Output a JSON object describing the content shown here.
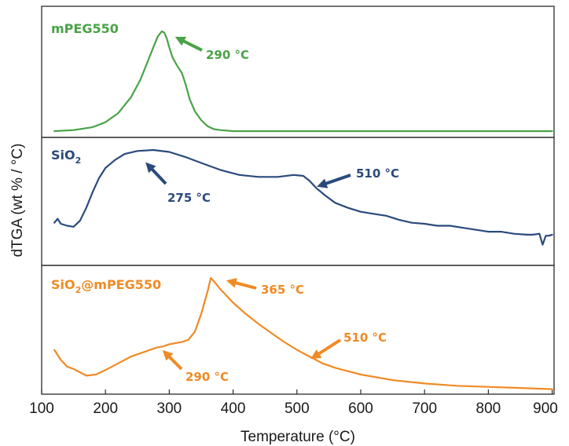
{
  "chart_data": {
    "type": "line",
    "xlabel": "Temperature (°C)",
    "ylabel": "dTGA (wt % / °C)",
    "xlim": [
      100,
      900
    ],
    "x_ticks": [
      "100",
      "200",
      "300",
      "400",
      "500",
      "600",
      "700",
      "800",
      "900"
    ],
    "series": [
      {
        "name": "mPEG550",
        "name_main": "mPEG550",
        "name_sub": "",
        "name_tail": "",
        "color": "#4aa247",
        "x": [
          120,
          150,
          180,
          200,
          220,
          240,
          255,
          265,
          275,
          282,
          288,
          292,
          296,
          300,
          305,
          312,
          320,
          326,
          332,
          340,
          350,
          360,
          370,
          380,
          400,
          500,
          600,
          700,
          800,
          900
        ],
        "y": [
          0.0,
          0.01,
          0.04,
          0.09,
          0.18,
          0.34,
          0.52,
          0.68,
          0.84,
          0.95,
          1.0,
          0.99,
          0.93,
          0.84,
          0.74,
          0.66,
          0.58,
          0.46,
          0.32,
          0.2,
          0.11,
          0.05,
          0.02,
          0.01,
          0.0,
          0.0,
          0.0,
          0.0,
          0.0,
          0.0
        ],
        "annotations": [
          {
            "label": "290 °C",
            "x": 290,
            "y": 1.0
          }
        ]
      },
      {
        "name": "SiO2",
        "name_main": "SiO",
        "name_sub": "2",
        "name_tail": "",
        "color": "#2a4a7b",
        "x": [
          120,
          125,
          130,
          140,
          150,
          160,
          170,
          180,
          190,
          200,
          215,
          230,
          250,
          275,
          300,
          325,
          350,
          380,
          410,
          440,
          470,
          495,
          510,
          520,
          530,
          545,
          560,
          580,
          600,
          620,
          640,
          660,
          680,
          700,
          720,
          740,
          760,
          780,
          800,
          820,
          840,
          860,
          870,
          880,
          885,
          890,
          895,
          900
        ],
        "y": [
          0.27,
          0.31,
          0.26,
          0.24,
          0.23,
          0.29,
          0.42,
          0.58,
          0.72,
          0.82,
          0.9,
          0.96,
          0.99,
          1.0,
          0.98,
          0.93,
          0.87,
          0.8,
          0.75,
          0.73,
          0.73,
          0.75,
          0.74,
          0.69,
          0.62,
          0.54,
          0.47,
          0.42,
          0.38,
          0.36,
          0.34,
          0.3,
          0.27,
          0.26,
          0.24,
          0.24,
          0.22,
          0.2,
          0.18,
          0.18,
          0.16,
          0.15,
          0.15,
          0.16,
          0.05,
          0.14,
          0.14,
          0.15
        ],
        "annotations": [
          {
            "label": "275 °C",
            "x": 275,
            "y": 1.0
          },
          {
            "label": "510 °C",
            "x": 510,
            "y": 0.74
          }
        ]
      },
      {
        "name": "SiO2@mPEG550",
        "name_main": "SiO",
        "name_sub": "2",
        "name_tail": "@mPEG550",
        "color": "#f08a24",
        "x": [
          120,
          130,
          140,
          150,
          160,
          170,
          185,
          200,
          220,
          240,
          260,
          280,
          290,
          300,
          310,
          320,
          330,
          340,
          350,
          360,
          365,
          370,
          380,
          400,
          420,
          440,
          460,
          480,
          500,
          520,
          540,
          560,
          580,
          600,
          650,
          700,
          750,
          800,
          850,
          900
        ],
        "y": [
          0.36,
          0.27,
          0.21,
          0.19,
          0.16,
          0.13,
          0.14,
          0.18,
          0.24,
          0.3,
          0.34,
          0.38,
          0.39,
          0.41,
          0.42,
          0.43,
          0.45,
          0.52,
          0.68,
          0.88,
          1.0,
          0.97,
          0.9,
          0.78,
          0.68,
          0.59,
          0.51,
          0.43,
          0.36,
          0.3,
          0.24,
          0.2,
          0.17,
          0.14,
          0.09,
          0.06,
          0.04,
          0.03,
          0.02,
          0.01
        ],
        "annotations": [
          {
            "label": "365 °C",
            "x": 365,
            "y": 1.0
          },
          {
            "label": "510 °C",
            "x": 510,
            "y": 0.33
          },
          {
            "label": "290 °C",
            "x": 290,
            "y": 0.39
          }
        ]
      }
    ],
    "legend": "in-panel labels, top-left of each panel"
  }
}
